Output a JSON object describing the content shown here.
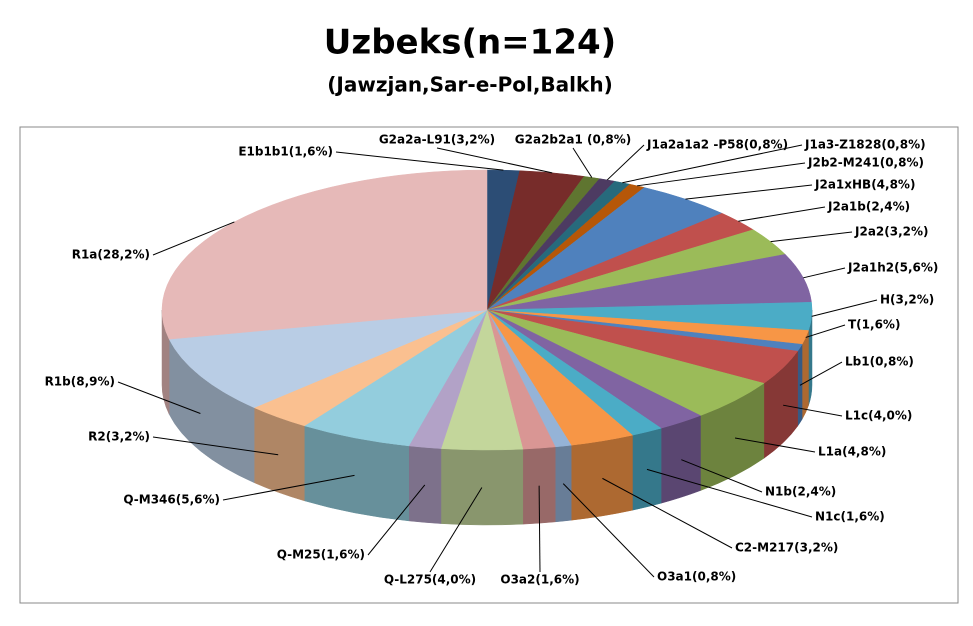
{
  "chart_data": {
    "type": "pie3d",
    "title": "Uzbeks(n=124)",
    "subtitle": "(Jawzjan,Sar-e-Pol,Balkh)",
    "categories": [
      "E1b1b1(1,6%)",
      "G2a2a-L91(3,2%)",
      "G2a2b2a1 (0,8%)",
      "J1a2a1a2 -P58(0,8%)",
      "J1a3-Z1828(0,8%)",
      "J2b2-M241(0,8%)",
      "J2a1xHB(4,8%)",
      "J2a1b(2,4%)",
      "J2a2(3,2%)",
      "J2a1h2(5,6%)",
      "H(3,2%)",
      "T(1,6%)",
      "Lb1(0,8%)",
      "L1c(4,0%)",
      "L1a(4,8%)",
      "N1b(2,4%)",
      "N1c(1,6%)",
      "C2-M217(3,2%)",
      "O3a1(0,8%)",
      "O3a2(1,6%)",
      "Q-L275(4,0%)",
      "Q-M25(1,6%)",
      "Q-M346(5,6%)",
      "R2(3,2%)",
      "R1b(8,9%)",
      "R1a(28,2%)"
    ],
    "values": [
      1.6,
      3.2,
      0.8,
      0.8,
      0.8,
      0.8,
      4.8,
      2.4,
      3.2,
      5.6,
      3.2,
      1.6,
      0.8,
      4.0,
      4.8,
      2.4,
      1.6,
      3.2,
      0.8,
      1.6,
      4.0,
      1.6,
      5.6,
      3.2,
      8.9,
      28.2
    ],
    "colors": [
      "#2C4D75",
      "#772C2A",
      "#5F7530",
      "#4D3B62",
      "#276A7C",
      "#B65708",
      "#4F81BD",
      "#C0504D",
      "#9BBB59",
      "#8064A2",
      "#4BACC6",
      "#F79646",
      "#4F81BD",
      "#C0504D",
      "#9BBB59",
      "#8064A2",
      "#4BACC6",
      "#F79646",
      "#95B3D7",
      "#D99694",
      "#C3D69B",
      "#B2A2C7",
      "#93CDDD",
      "#FAC090",
      "#B9CDE5",
      "#E6B9B8"
    ]
  }
}
